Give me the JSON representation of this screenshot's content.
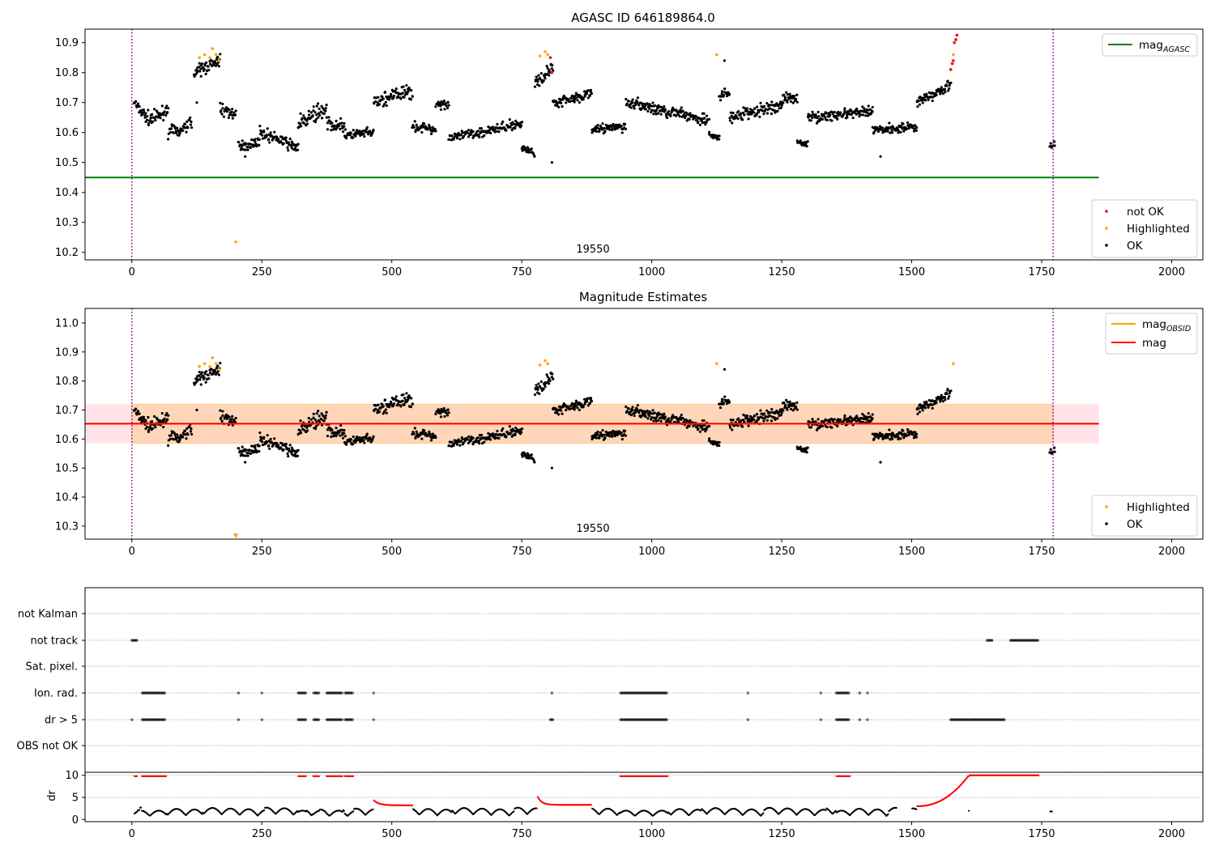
{
  "chart_data": [
    {
      "type": "scatter",
      "title": "AGASC ID 646189864.0",
      "xlim": [
        -90,
        2060
      ],
      "ylim": [
        10.175,
        10.945
      ],
      "xticks": [
        "0",
        "250",
        "500",
        "750",
        "1000",
        "1250",
        "1500",
        "1750",
        "2000"
      ],
      "yticks": [
        "10.2",
        "10.3",
        "10.4",
        "10.5",
        "10.6",
        "10.7",
        "10.8",
        "10.9"
      ],
      "obsid_label": "19550",
      "obsid_boundaries": [
        0,
        1772
      ],
      "reference_lines": [
        {
          "name": "mag_AGASC",
          "label_main": "mag",
          "label_sub": "AGASC",
          "y": 10.45,
          "x_end": 1860,
          "color": "#008000"
        }
      ],
      "scatter_legend": [
        {
          "label": "not OK",
          "color": "#ff0000"
        },
        {
          "label": "Highlighted",
          "color": "#ffa500"
        },
        {
          "label": "OK",
          "color": "#000000"
        }
      ],
      "segments": [
        {
          "x": [
            5,
            35
          ],
          "y0": 10.7,
          "y1": 10.64,
          "spread": 0.035
        },
        {
          "x": [
            35,
            70
          ],
          "y0": 10.64,
          "y1": 10.68,
          "spread": 0.035
        },
        {
          "x": [
            70,
            90
          ],
          "y0": 10.6,
          "y1": 10.61,
          "spread": 0.03
        },
        {
          "x": [
            90,
            115
          ],
          "y0": 10.6,
          "y1": 10.64,
          "spread": 0.03
        },
        {
          "x": [
            120,
            170
          ],
          "y0": 10.8,
          "y1": 10.84,
          "spread": 0.035
        },
        {
          "x": [
            170,
            200
          ],
          "y0": 10.68,
          "y1": 10.66,
          "spread": 0.03
        },
        {
          "x": [
            205,
            245
          ],
          "y0": 10.55,
          "y1": 10.57,
          "spread": 0.025
        },
        {
          "x": [
            245,
            320
          ],
          "y0": 10.6,
          "y1": 10.55,
          "spread": 0.03
        },
        {
          "x": [
            320,
            375
          ],
          "y0": 10.63,
          "y1": 10.68,
          "spread": 0.04
        },
        {
          "x": [
            375,
            410
          ],
          "y0": 10.63,
          "y1": 10.62,
          "spread": 0.03
        },
        {
          "x": [
            410,
            465
          ],
          "y0": 10.59,
          "y1": 10.6,
          "spread": 0.025
        },
        {
          "x": [
            465,
            540
          ],
          "y0": 10.7,
          "y1": 10.74,
          "spread": 0.04
        },
        {
          "x": [
            540,
            585
          ],
          "y0": 10.62,
          "y1": 10.61,
          "spread": 0.025
        },
        {
          "x": [
            585,
            610
          ],
          "y0": 10.7,
          "y1": 10.69,
          "spread": 0.03
        },
        {
          "x": [
            610,
            750
          ],
          "y0": 10.58,
          "y1": 10.63,
          "spread": 0.025
        },
        {
          "x": [
            750,
            775
          ],
          "y0": 10.55,
          "y1": 10.53,
          "spread": 0.02
        },
        {
          "x": [
            775,
            810
          ],
          "y0": 10.76,
          "y1": 10.82,
          "spread": 0.03
        },
        {
          "x": [
            810,
            885
          ],
          "y0": 10.7,
          "y1": 10.73,
          "spread": 0.025
        },
        {
          "x": [
            885,
            950
          ],
          "y0": 10.61,
          "y1": 10.62,
          "spread": 0.025
        },
        {
          "x": [
            950,
            1110
          ],
          "y0": 10.7,
          "y1": 10.64,
          "spread": 0.03
        },
        {
          "x": [
            1110,
            1130
          ],
          "y0": 10.59,
          "y1": 10.58,
          "spread": 0.02
        },
        {
          "x": [
            1130,
            1150
          ],
          "y0": 10.72,
          "y1": 10.73,
          "spread": 0.03
        },
        {
          "x": [
            1150,
            1250
          ],
          "y0": 10.65,
          "y1": 10.69,
          "spread": 0.03
        },
        {
          "x": [
            1250,
            1280
          ],
          "y0": 10.71,
          "y1": 10.72,
          "spread": 0.03
        },
        {
          "x": [
            1280,
            1300
          ],
          "y0": 10.57,
          "y1": 10.56,
          "spread": 0.02
        },
        {
          "x": [
            1300,
            1425
          ],
          "y0": 10.65,
          "y1": 10.67,
          "spread": 0.025
        },
        {
          "x": [
            1425,
            1510
          ],
          "y0": 10.61,
          "y1": 10.62,
          "spread": 0.025
        },
        {
          "x": [
            1510,
            1575
          ],
          "y0": 10.7,
          "y1": 10.76,
          "spread": 0.03
        },
        {
          "x": [
            1765,
            1775
          ],
          "y0": 10.55,
          "y1": 10.56,
          "spread": 0.02
        }
      ],
      "highlighted": [
        [
          130,
          10.85
        ],
        [
          140,
          10.86
        ],
        [
          150,
          10.85
        ],
        [
          155,
          10.88
        ],
        [
          162,
          10.86
        ],
        [
          168,
          10.84
        ],
        [
          200,
          10.235
        ],
        [
          785,
          10.855
        ],
        [
          795,
          10.87
        ],
        [
          800,
          10.86
        ],
        [
          1125,
          10.86
        ],
        [
          1580,
          10.86
        ]
      ],
      "not_ok": [
        [
          805,
          10.85
        ],
        [
          808,
          10.8
        ],
        [
          1575,
          10.81
        ],
        [
          1578,
          10.83
        ],
        [
          1580,
          10.84
        ],
        [
          1582,
          10.9
        ],
        [
          1585,
          10.91
        ],
        [
          1587,
          10.925
        ]
      ],
      "ok_extra": [
        [
          808,
          10.5
        ],
        [
          1140,
          10.84
        ],
        [
          1440,
          10.52
        ],
        [
          218,
          10.52
        ],
        [
          125,
          10.7
        ]
      ]
    },
    {
      "type": "scatter",
      "title": "Magnitude Estimates",
      "xlim": [
        -90,
        2060
      ],
      "ylim": [
        10.255,
        11.05
      ],
      "xticks": [
        "0",
        "250",
        "500",
        "750",
        "1000",
        "1250",
        "1500",
        "1750",
        "2000"
      ],
      "yticks": [
        "10.3",
        "10.4",
        "10.5",
        "10.6",
        "10.7",
        "10.8",
        "10.9",
        "11.0"
      ],
      "obsid_label": "19550",
      "obsid_boundaries": [
        0,
        1772
      ],
      "band": {
        "y0": 10.585,
        "y1": 10.72,
        "x_end": 1860
      },
      "reference_lines": [
        {
          "name": "mag_OBSID",
          "label_main": "mag",
          "label_sub": "OBSID",
          "y": 10.653,
          "x_end": 1860,
          "color": "#ffa500"
        },
        {
          "name": "mag",
          "label_main": "mag",
          "label_sub": "",
          "y": 10.653,
          "x_end": 1860,
          "color": "#ff0000"
        }
      ],
      "scatter_legend": [
        {
          "label": "Highlighted",
          "color": "#ffa500"
        },
        {
          "label": "OK",
          "color": "#000000"
        }
      ],
      "offscale_marker": {
        "x": 200,
        "color": "#ffa500"
      }
    },
    {
      "type": "scatter",
      "title": "",
      "xlim": [
        -90,
        2060
      ],
      "xticks": [
        "0",
        "250",
        "500",
        "750",
        "1000",
        "1250",
        "1500",
        "1750",
        "2000"
      ],
      "flag_rows": [
        "not Kalman",
        "not track",
        "Sat. pixel.",
        "Ion. rad.",
        "dr > 5",
        "OBS not OK"
      ],
      "flags": {
        "not track": [
          [
            0,
            10
          ],
          [
            1645,
            1655
          ],
          [
            1690,
            1745
          ]
        ],
        "Ion. rad.": [
          [
            20,
            65
          ],
          [
            205,
            205
          ],
          [
            250,
            250
          ],
          [
            320,
            335
          ],
          [
            350,
            360
          ],
          [
            375,
            405
          ],
          [
            410,
            425
          ],
          [
            465,
            465
          ],
          [
            808,
            808
          ],
          [
            940,
            1030
          ],
          [
            1185,
            1185
          ],
          [
            1325,
            1325
          ],
          [
            1355,
            1380
          ],
          [
            1400,
            1400
          ],
          [
            1415,
            1415
          ]
        ],
        "dr > 5": [
          [
            0,
            0
          ],
          [
            20,
            65
          ],
          [
            205,
            205
          ],
          [
            250,
            250
          ],
          [
            320,
            335
          ],
          [
            350,
            360
          ],
          [
            375,
            405
          ],
          [
            410,
            425
          ],
          [
            465,
            465
          ],
          [
            805,
            810
          ],
          [
            940,
            1030
          ],
          [
            1185,
            1185
          ],
          [
            1325,
            1325
          ],
          [
            1355,
            1380
          ],
          [
            1400,
            1400
          ],
          [
            1415,
            1415
          ],
          [
            1575,
            1680
          ]
        ]
      },
      "dr_panel": {
        "ylabel": "dr",
        "ylim": [
          -0.5,
          10.5
        ],
        "yticks": [
          "0",
          "5",
          "10"
        ],
        "gridlines": [
          5,
          10
        ],
        "red_segments": [
          [
            0,
            10
          ],
          [
            20,
            65
          ],
          [
            320,
            335
          ],
          [
            350,
            360
          ],
          [
            375,
            405
          ],
          [
            410,
            425
          ],
          [
            465,
            540
          ],
          [
            780,
            885
          ],
          [
            940,
            1030
          ],
          [
            1355,
            1380
          ],
          [
            1510,
            1745
          ]
        ],
        "saturated_segments": [
          [
            0,
            10
          ],
          [
            20,
            65
          ],
          [
            320,
            335
          ],
          [
            350,
            360
          ],
          [
            375,
            405
          ],
          [
            410,
            425
          ],
          [
            940,
            1030
          ],
          [
            1355,
            1380
          ],
          [
            1610,
            1745
          ]
        ]
      }
    }
  ]
}
